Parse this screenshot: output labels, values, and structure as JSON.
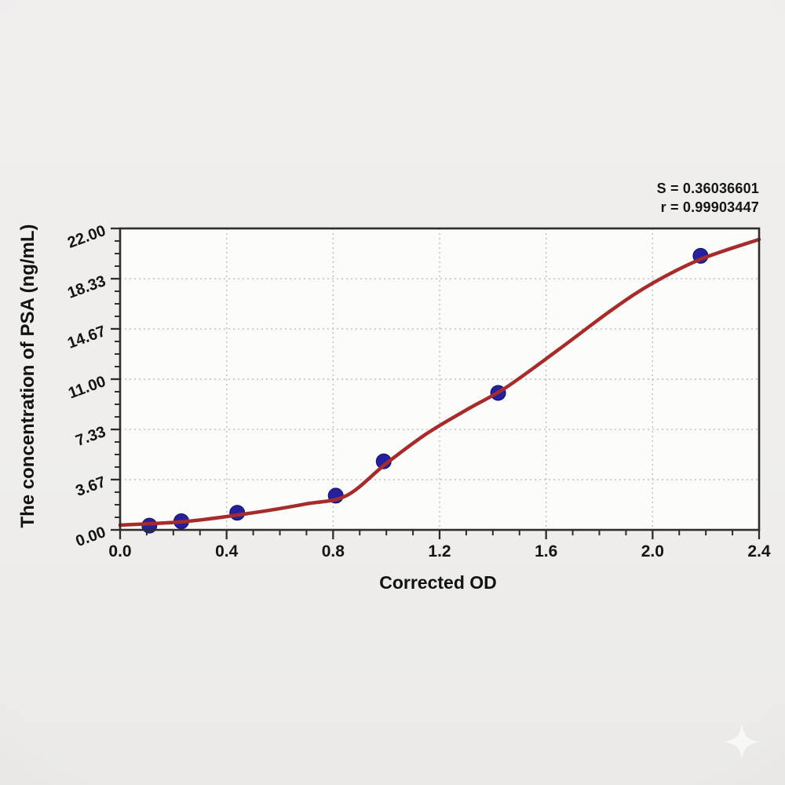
{
  "figure": {
    "annotation": {
      "line1": "S = 0.36036601",
      "line2": "r = 0.99903447"
    },
    "watermark_icon": "four-point-star"
  },
  "chart_data": {
    "type": "scatter",
    "title": "",
    "xlabel": "Corrected OD",
    "ylabel": "The concentration of PSA (ng/mL)",
    "xlim": [
      0.0,
      2.4
    ],
    "ylim": [
      0.0,
      22.0
    ],
    "x_tick_values": [
      0.0,
      0.4,
      0.8,
      1.2,
      1.6,
      2.0,
      2.4
    ],
    "x_tick_labels": [
      "0.0",
      "0.4",
      "0.8",
      "1.2",
      "1.6",
      "2.0",
      "2.4"
    ],
    "y_tick_values": [
      0.0,
      3.67,
      7.33,
      11.0,
      14.67,
      18.33,
      22.0
    ],
    "y_tick_labels": [
      "0.00",
      "3.67",
      "7.33",
      "11.00",
      "14.67",
      "18.33",
      "22.00"
    ],
    "minor_divisions_per_interval": 4,
    "grid": {
      "show": true,
      "style": "dashed"
    },
    "legend": {
      "show": false
    },
    "stats": {
      "S": 0.36036601,
      "r": 0.99903447
    },
    "series": [
      {
        "name": "standard-points",
        "type": "scatter",
        "color": "#25219e",
        "points": [
          [
            0.11,
            0.31
          ],
          [
            0.23,
            0.63
          ],
          [
            0.44,
            1.25
          ],
          [
            0.81,
            2.5
          ],
          [
            0.99,
            5.0
          ],
          [
            1.42,
            10.0
          ],
          [
            2.18,
            20.0
          ]
        ]
      },
      {
        "name": "fit-curve",
        "type": "line",
        "color": "#a62c2c",
        "points": [
          [
            0.0,
            0.35
          ],
          [
            0.25,
            0.62
          ],
          [
            0.5,
            1.25
          ],
          [
            0.7,
            1.9
          ],
          [
            0.85,
            2.5
          ],
          [
            1.0,
            4.85
          ],
          [
            1.15,
            7.0
          ],
          [
            1.3,
            8.75
          ],
          [
            1.45,
            10.4
          ],
          [
            1.65,
            13.2
          ],
          [
            1.85,
            16.1
          ],
          [
            2.0,
            18.0
          ],
          [
            2.18,
            19.75
          ],
          [
            2.4,
            21.2
          ]
        ]
      }
    ],
    "colors": {
      "page_bg": "#efeeec",
      "plot_bg": "#fcfcfb",
      "axis": "#2f2d2b",
      "grid": "#bdbdbd",
      "tick_text": "#141414",
      "curve": "#a62c2c",
      "point": "#25219e",
      "watermark": "#ffffff"
    }
  }
}
